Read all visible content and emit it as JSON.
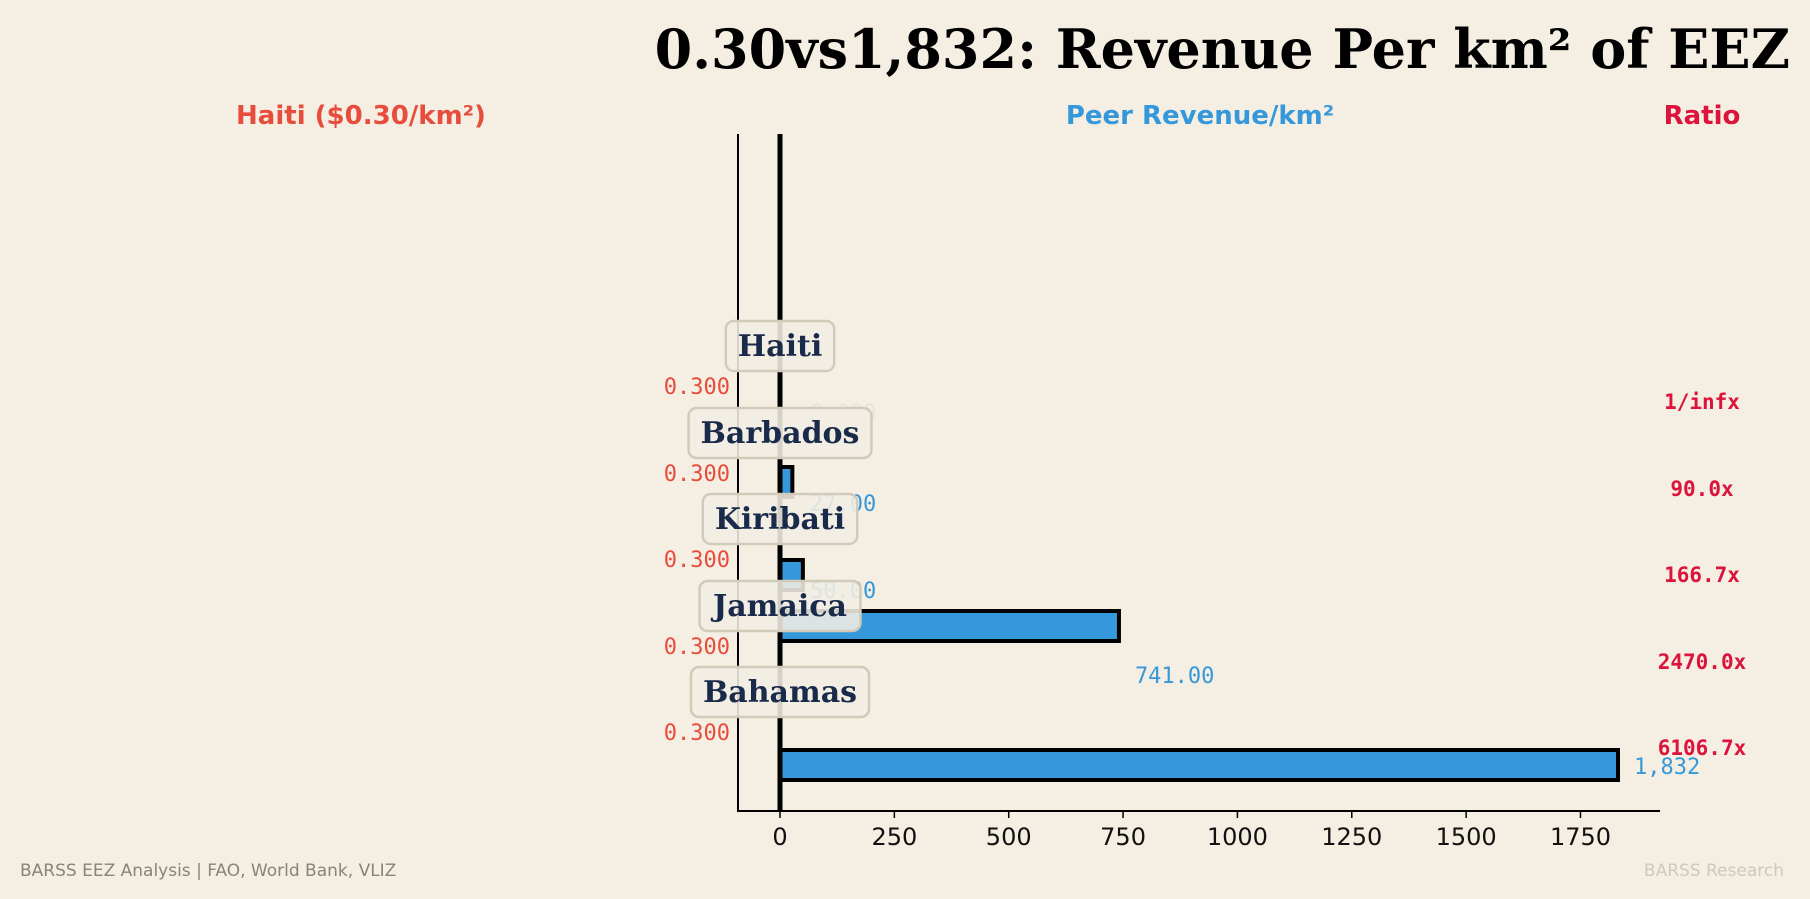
{
  "chart_data": {
    "type": "bar",
    "title": "0.30vs1,832: Revenue Per km² of EEZ",
    "headers": {
      "left": "Haiti ($0.30/km²)",
      "middle": "Peer Revenue/km²",
      "right": "Ratio"
    },
    "categories": [
      "Haiti",
      "Barbados",
      "Kiribati",
      "Jamaica",
      "Bahamas"
    ],
    "haiti_values": [
      0.3,
      0.3,
      0.3,
      0.3,
      0.3
    ],
    "haiti_labels": [
      "0.300",
      "0.300",
      "0.300",
      "0.300",
      "0.300"
    ],
    "peer_values": [
      0.0,
      27.0,
      50.0,
      741.0,
      1832.0
    ],
    "peer_labels": [
      "0.000",
      "27.00",
      "50.00",
      "741.00",
      "1,832"
    ],
    "ratios": [
      "1/infx",
      "90.0x",
      "166.7x",
      "2470.0x",
      "6106.7x"
    ],
    "xticks": [
      "0",
      "250",
      "500",
      "750",
      "1000",
      "1250",
      "1500",
      "1750"
    ],
    "xtick_values": [
      0,
      250,
      500,
      750,
      1000,
      1250,
      1500,
      1750
    ],
    "xlim": [
      -95,
      1930
    ],
    "colors": {
      "haiti": "#e74c3c",
      "peer": "#3498db",
      "ratio": "#dc143c",
      "country": "#1a2a4a",
      "background": "#f5efe3"
    }
  },
  "footer": {
    "left": "BARSS EEZ Analysis | FAO, World Bank, VLIZ",
    "right": "BARSS Research"
  }
}
